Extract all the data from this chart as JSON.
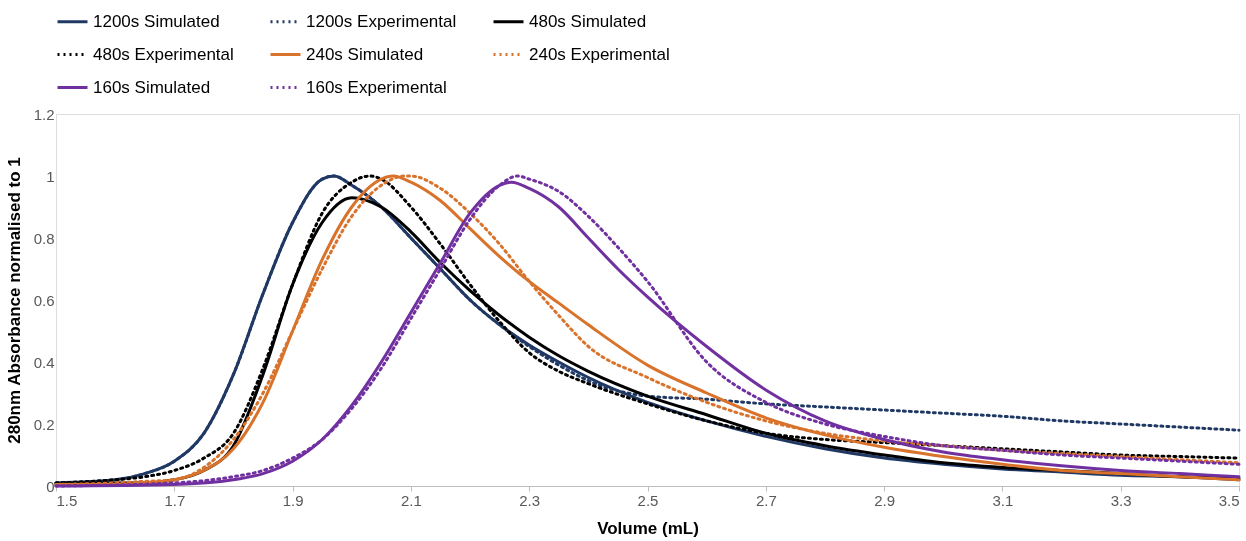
{
  "chart_data": {
    "type": "line",
    "xlabel": "Volume (mL)",
    "ylabel": "280nm Absorbance  normalised to 1",
    "xlim": [
      1.5,
      3.5
    ],
    "xticks": [
      1.5,
      1.7,
      1.9,
      2.1,
      2.3,
      2.5,
      2.7,
      2.9,
      3.1,
      3.3,
      3.5
    ],
    "ylim": [
      0,
      1.2
    ],
    "yticks": [
      0,
      0.2,
      0.4,
      0.6,
      0.8,
      1,
      1.2
    ],
    "grid": false,
    "legend": "top",
    "marker": "none",
    "series": [
      {
        "name": "1200s Simulated",
        "color": "#203864",
        "line_style": "solid",
        "x": [
          1.5,
          1.6,
          1.65,
          1.7,
          1.75,
          1.8,
          1.85,
          1.9,
          1.95,
          1.97,
          2.0,
          2.05,
          2.1,
          2.15,
          2.2,
          2.25,
          2.3,
          2.35,
          2.4,
          2.5,
          2.6,
          2.7,
          2.8,
          2.9,
          3.0,
          3.1,
          3.2,
          3.3,
          3.4,
          3.5
        ],
        "values": [
          0.01,
          0.02,
          0.04,
          0.08,
          0.17,
          0.36,
          0.62,
          0.85,
          0.99,
          1.0,
          0.97,
          0.9,
          0.8,
          0.7,
          0.6,
          0.52,
          0.455,
          0.4,
          0.35,
          0.27,
          0.21,
          0.16,
          0.12,
          0.09,
          0.07,
          0.055,
          0.045,
          0.035,
          0.03,
          0.02
        ]
      },
      {
        "name": "1200s Experimental",
        "color": "#203864",
        "line_style": "dotted",
        "x": [
          1.5,
          1.6,
          1.65,
          1.7,
          1.75,
          1.8,
          1.85,
          1.9,
          1.95,
          1.97,
          2.0,
          2.05,
          2.1,
          2.15,
          2.2,
          2.25,
          2.3,
          2.35,
          2.4,
          2.5,
          2.6,
          2.7,
          2.8,
          2.9,
          3.0,
          3.1,
          3.2,
          3.3,
          3.4,
          3.5
        ],
        "values": [
          0.01,
          0.02,
          0.04,
          0.08,
          0.17,
          0.36,
          0.62,
          0.85,
          0.99,
          1.0,
          0.97,
          0.9,
          0.8,
          0.7,
          0.6,
          0.52,
          0.45,
          0.39,
          0.34,
          0.29,
          0.28,
          0.265,
          0.255,
          0.245,
          0.235,
          0.225,
          0.21,
          0.2,
          0.19,
          0.18
        ]
      },
      {
        "name": "480s Simulated",
        "color": "#000000",
        "line_style": "solid",
        "x": [
          1.5,
          1.6,
          1.65,
          1.7,
          1.75,
          1.8,
          1.85,
          1.9,
          1.95,
          2.0,
          2.05,
          2.1,
          2.15,
          2.2,
          2.25,
          2.3,
          2.35,
          2.4,
          2.5,
          2.6,
          2.7,
          2.8,
          2.9,
          3.0,
          3.1,
          3.2,
          3.3,
          3.4,
          3.5
        ],
        "values": [
          0.005,
          0.01,
          0.01,
          0.02,
          0.05,
          0.13,
          0.36,
          0.65,
          0.85,
          0.93,
          0.9,
          0.82,
          0.72,
          0.63,
          0.55,
          0.48,
          0.42,
          0.37,
          0.29,
          0.23,
          0.17,
          0.13,
          0.1,
          0.075,
          0.06,
          0.05,
          0.04,
          0.03,
          0.025
        ]
      },
      {
        "name": "480s Experimental",
        "color": "#000000",
        "line_style": "dotted",
        "x": [
          1.5,
          1.6,
          1.65,
          1.7,
          1.75,
          1.8,
          1.85,
          1.9,
          1.95,
          2.0,
          2.03,
          2.05,
          2.1,
          2.15,
          2.2,
          2.25,
          2.3,
          2.35,
          2.4,
          2.5,
          2.6,
          2.7,
          2.8,
          2.9,
          3.0,
          3.1,
          3.2,
          3.3,
          3.4,
          3.5
        ],
        "values": [
          0.01,
          0.02,
          0.03,
          0.05,
          0.09,
          0.17,
          0.38,
          0.65,
          0.88,
          0.98,
          1.0,
          0.99,
          0.9,
          0.78,
          0.65,
          0.53,
          0.43,
          0.37,
          0.33,
          0.265,
          0.21,
          0.17,
          0.15,
          0.14,
          0.13,
          0.12,
          0.11,
          0.1,
          0.095,
          0.09
        ]
      },
      {
        "name": "240s Simulated",
        "color": "#d9732b",
        "line_style": "solid",
        "x": [
          1.5,
          1.6,
          1.65,
          1.7,
          1.75,
          1.8,
          1.85,
          1.9,
          1.95,
          2.0,
          2.05,
          2.07,
          2.1,
          2.15,
          2.2,
          2.25,
          2.3,
          2.35,
          2.4,
          2.5,
          2.6,
          2.7,
          2.8,
          2.9,
          3.0,
          3.1,
          3.2,
          3.3,
          3.4,
          3.5
        ],
        "values": [
          0.005,
          0.005,
          0.01,
          0.02,
          0.05,
          0.12,
          0.27,
          0.5,
          0.73,
          0.9,
          0.99,
          1.0,
          0.98,
          0.92,
          0.83,
          0.74,
          0.66,
          0.59,
          0.52,
          0.39,
          0.3,
          0.22,
          0.165,
          0.125,
          0.095,
          0.07,
          0.05,
          0.04,
          0.03,
          0.02
        ]
      },
      {
        "name": "240s Experimental",
        "color": "#d9732b",
        "line_style": "dotted",
        "x": [
          1.5,
          1.6,
          1.65,
          1.7,
          1.75,
          1.8,
          1.85,
          1.9,
          1.95,
          2.0,
          2.05,
          2.09,
          2.1,
          2.15,
          2.2,
          2.25,
          2.3,
          2.35,
          2.4,
          2.5,
          2.6,
          2.7,
          2.8,
          2.9,
          3.0,
          3.1,
          3.2,
          3.3,
          3.4,
          3.5
        ],
        "values": [
          0.005,
          0.01,
          0.015,
          0.02,
          0.06,
          0.15,
          0.3,
          0.5,
          0.7,
          0.87,
          0.97,
          1.0,
          1.0,
          0.96,
          0.88,
          0.78,
          0.66,
          0.55,
          0.45,
          0.35,
          0.27,
          0.21,
          0.17,
          0.145,
          0.13,
          0.115,
          0.105,
          0.095,
          0.085,
          0.075
        ]
      },
      {
        "name": "160s Simulated",
        "color": "#7030a0",
        "line_style": "solid",
        "x": [
          1.5,
          1.7,
          1.8,
          1.85,
          1.9,
          1.95,
          2.0,
          2.05,
          2.1,
          2.15,
          2.2,
          2.25,
          2.27,
          2.3,
          2.35,
          2.4,
          2.45,
          2.5,
          2.6,
          2.7,
          2.8,
          2.9,
          3.0,
          3.1,
          3.2,
          3.3,
          3.4,
          3.5
        ],
        "values": [
          0.0,
          0.005,
          0.02,
          0.04,
          0.08,
          0.15,
          0.26,
          0.4,
          0.56,
          0.72,
          0.88,
          0.97,
          0.98,
          0.96,
          0.9,
          0.8,
          0.7,
          0.61,
          0.45,
          0.31,
          0.21,
          0.15,
          0.11,
          0.085,
          0.065,
          0.05,
          0.04,
          0.03
        ]
      },
      {
        "name": "160s Experimental",
        "color": "#7030a0",
        "line_style": "dotted",
        "x": [
          1.5,
          1.7,
          1.8,
          1.85,
          1.9,
          1.95,
          2.0,
          2.05,
          2.1,
          2.15,
          2.2,
          2.25,
          2.28,
          2.3,
          2.35,
          2.4,
          2.45,
          2.5,
          2.6,
          2.7,
          2.8,
          2.9,
          3.0,
          3.1,
          3.2,
          3.3,
          3.4,
          3.5
        ],
        "values": [
          0.0,
          0.01,
          0.03,
          0.05,
          0.09,
          0.15,
          0.25,
          0.38,
          0.54,
          0.7,
          0.86,
          0.97,
          1.0,
          0.99,
          0.95,
          0.87,
          0.77,
          0.66,
          0.4,
          0.27,
          0.2,
          0.16,
          0.13,
          0.115,
          0.1,
          0.09,
          0.08,
          0.07
        ]
      }
    ]
  }
}
